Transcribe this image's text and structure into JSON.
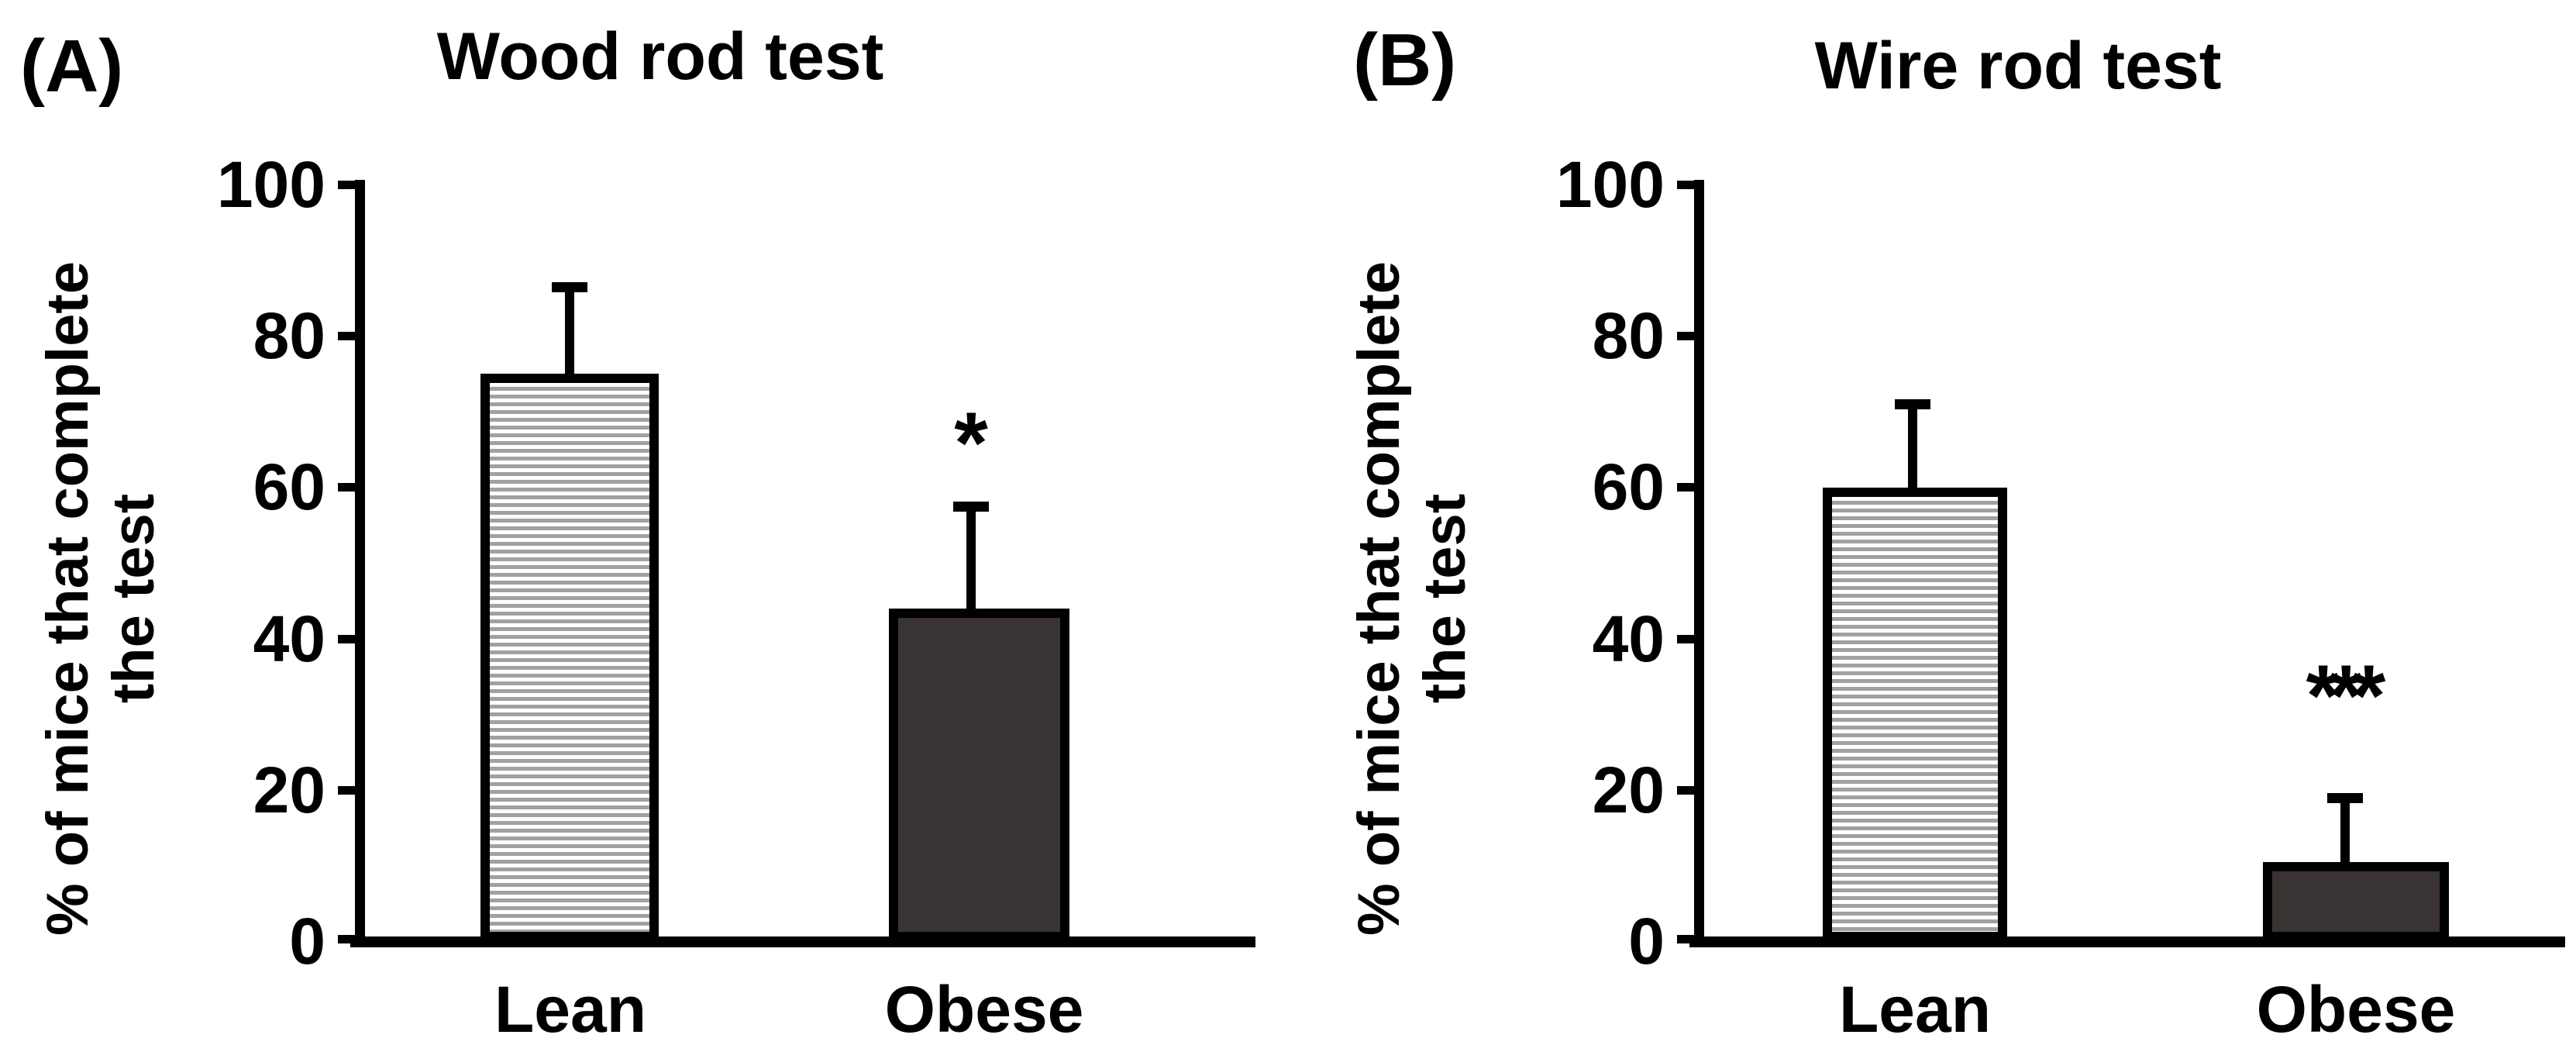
{
  "colors": {
    "background": "#ffffff",
    "axis_black": "#000000",
    "dark_bar_fill": "#393433",
    "stripe_gray": "#a3a09e"
  },
  "chart_data": [
    {
      "type": "bar",
      "panel_label": "(A)",
      "title": "Wood rod test",
      "ylabel_line1": "% of mice that complete",
      "ylabel_line2": "the test",
      "xlabel": "",
      "ylim": [
        0,
        100
      ],
      "yticks": [
        100,
        80,
        60,
        40,
        20,
        0
      ],
      "ytick_labels": [
        "100",
        "80",
        "60",
        "40",
        "20",
        "0"
      ],
      "grid": false,
      "legend": null,
      "categories": [
        "Lean",
        "Obese"
      ],
      "values": [
        75,
        44
      ],
      "error_plus": [
        11.5,
        13.5
      ],
      "bar_fills": [
        "horizontal-stripe-hatch",
        "dark-gray-solid"
      ],
      "significance_marker": "*",
      "significance_on": "Obese"
    },
    {
      "type": "bar",
      "panel_label": "(B)",
      "title": "Wire rod test",
      "ylabel_line1": "% of mice that complete",
      "ylabel_line2": "the test",
      "xlabel": "",
      "ylim": [
        0,
        100
      ],
      "yticks": [
        100,
        80,
        60,
        40,
        20,
        0
      ],
      "ytick_labels": [
        "100",
        "80",
        "60",
        "40",
        "20",
        "0"
      ],
      "grid": false,
      "legend": null,
      "categories": [
        "Lean",
        "Obese"
      ],
      "values": [
        60,
        10.5
      ],
      "error_plus": [
        11,
        8.5
      ],
      "bar_fills": [
        "horizontal-stripe-hatch",
        "dark-gray-solid"
      ],
      "significance_marker": "***",
      "significance_on": "Obese"
    }
  ]
}
